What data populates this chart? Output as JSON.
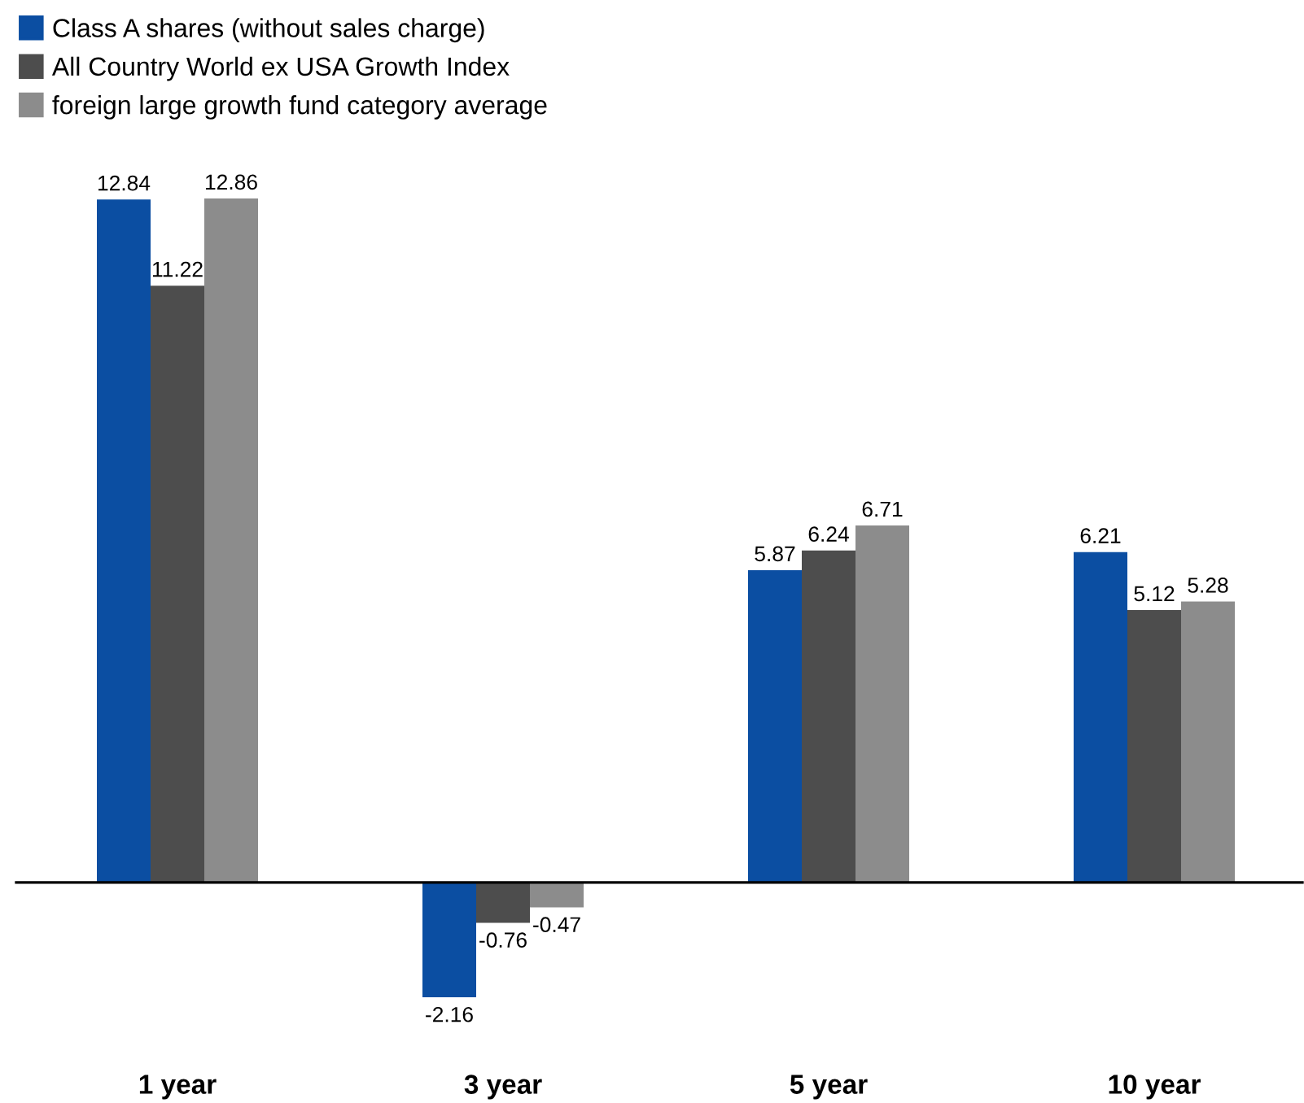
{
  "chart_data": {
    "type": "bar",
    "categories": [
      "1 year",
      "3 year",
      "5 year",
      "10 year"
    ],
    "series": [
      {
        "name": "Class A shares (without sales charge)",
        "color": "#0b4ea2",
        "values": [
          12.84,
          -2.16,
          5.87,
          6.21
        ]
      },
      {
        "name": "All Country World ex USA Growth Index",
        "color": "#4d4d4d",
        "values": [
          11.22,
          -0.76,
          6.24,
          5.12
        ]
      },
      {
        "name": "foreign large growth fund category average",
        "color": "#8c8c8c",
        "values": [
          12.86,
          -0.47,
          6.71,
          5.28
        ]
      }
    ],
    "data_labels": true,
    "legend": "top left",
    "grid": false
  }
}
